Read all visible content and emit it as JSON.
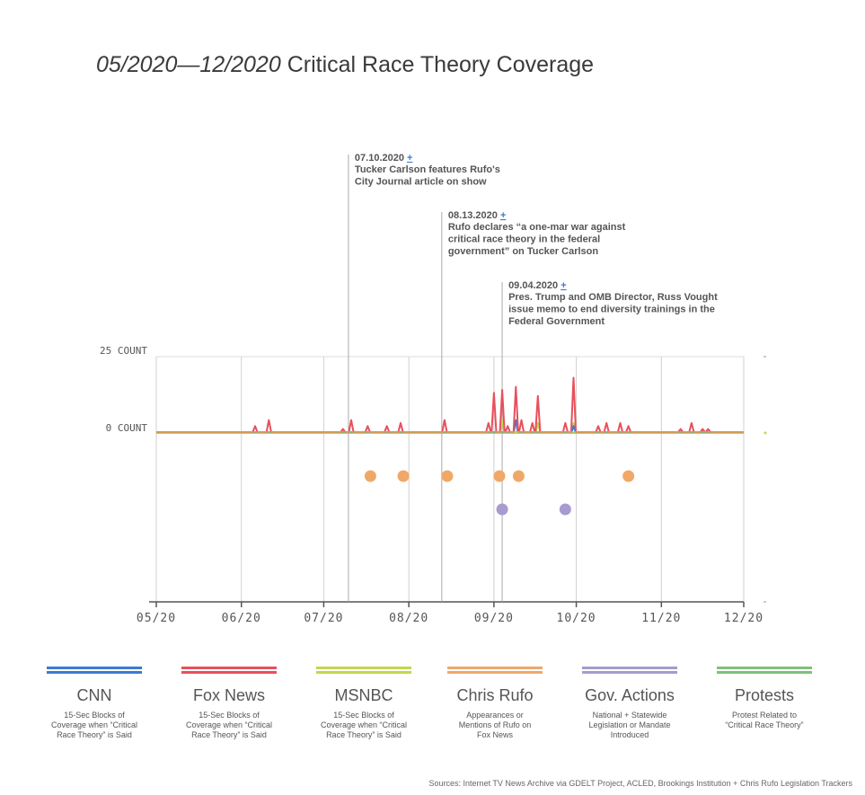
{
  "title": {
    "dates": "05/2020—12/2020",
    "text": " Critical Race Theory Coverage"
  },
  "chart_data": {
    "type": "line",
    "x_start": "2020-05-01",
    "x_end": "2020-12-01",
    "x_ticks": [
      "05/20",
      "06/20",
      "07/20",
      "08/20",
      "09/20",
      "10/20",
      "11/20",
      "12/20"
    ],
    "y_labels": [
      "25 COUNT",
      "0 COUNT"
    ],
    "ylim": [
      0,
      25
    ],
    "grid": true,
    "series": [
      {
        "name": "Fox News",
        "color": "#e8505b",
        "points": [
          [
            "2020-06-06",
            2
          ],
          [
            "2020-06-11",
            4
          ],
          [
            "2020-07-08",
            1
          ],
          [
            "2020-07-11",
            4
          ],
          [
            "2020-07-17",
            2
          ],
          [
            "2020-07-24",
            2
          ],
          [
            "2020-07-29",
            3
          ],
          [
            "2020-08-14",
            4
          ],
          [
            "2020-08-30",
            3
          ],
          [
            "2020-09-01",
            13
          ],
          [
            "2020-09-04",
            14
          ],
          [
            "2020-09-06",
            2
          ],
          [
            "2020-09-09",
            15
          ],
          [
            "2020-09-11",
            4
          ],
          [
            "2020-09-15",
            3
          ],
          [
            "2020-09-17",
            12
          ],
          [
            "2020-09-27",
            3
          ],
          [
            "2020-09-30",
            18
          ],
          [
            "2020-10-09",
            2
          ],
          [
            "2020-10-12",
            3
          ],
          [
            "2020-10-17",
            3
          ],
          [
            "2020-10-20",
            2
          ],
          [
            "2020-11-08",
            1
          ],
          [
            "2020-11-12",
            3
          ],
          [
            "2020-11-16",
            1
          ],
          [
            "2020-11-18",
            1
          ]
        ]
      },
      {
        "name": "CNN",
        "color": "#3a7bd5",
        "points": [
          [
            "2020-09-09",
            4
          ],
          [
            "2020-09-30",
            2
          ]
        ]
      },
      {
        "name": "MSNBC",
        "color": "#c5d64e",
        "points": [
          [
            "2020-09-04",
            4
          ],
          [
            "2020-09-17",
            3
          ],
          [
            "2020-09-30",
            3
          ]
        ]
      }
    ],
    "chris_rufo_dates": [
      "2020-07-18",
      "2020-07-30",
      "2020-08-15",
      "2020-09-03",
      "2020-09-10",
      "2020-10-20"
    ],
    "gov_action_dates": [
      "2020-09-04",
      "2020-09-27"
    ],
    "annotations": [
      {
        "date": "2020-07-10",
        "date_label": "07.10.2020",
        "plus": "+",
        "lines": [
          "Tucker Carlson features Rufo's",
          "City Journal article on show"
        ]
      },
      {
        "date": "2020-08-13",
        "date_label": "08.13.2020",
        "plus": "+",
        "lines": [
          "Rufo declares “a one-mar war against",
          "critical race theory in the federal",
          "government” on Tucker Carlson"
        ]
      },
      {
        "date": "2020-09-04",
        "date_label": "09.04.2020",
        "plus": "+",
        "lines": [
          "Pres. Trump and OMB Director, Russ Vought",
          "issue memo to end diversity trainings in  the",
          "Federal Government"
        ]
      }
    ]
  },
  "legend": [
    {
      "name": "CNN",
      "color": "#3a7bd5",
      "desc": [
        "15-Sec Blocks of",
        "Coverage when “Critical",
        "Race Theory” is Said"
      ]
    },
    {
      "name": "Fox News",
      "color": "#e8505b",
      "desc": [
        "15-Sec Blocks of",
        "Coverage when “Critical",
        "Race Theory” is Said"
      ]
    },
    {
      "name": "MSNBC",
      "color": "#c5d64e",
      "desc": [
        "15-Sec Blocks of",
        "Coverage when “Critical",
        "Race Theory” is Said"
      ]
    },
    {
      "name": "Chris Rufo",
      "color": "#f0a868",
      "desc": [
        "Appearances or",
        "Mentions of Rufo on",
        "Fox News"
      ]
    },
    {
      "name": "Gov. Actions",
      "color": "#a79bd0",
      "desc": [
        "National + Statewide",
        "Legislation or Mandate",
        "Introduced"
      ]
    },
    {
      "name": "Protests",
      "color": "#7ec07a",
      "desc": [
        "Protest Related to",
        "“Critical Race Theory”"
      ]
    }
  ],
  "sources": "Sources: Internet TV News Archive via GDELT Project, ACLED, Brookings Institution + Chris Rufo Legislation Trackers"
}
